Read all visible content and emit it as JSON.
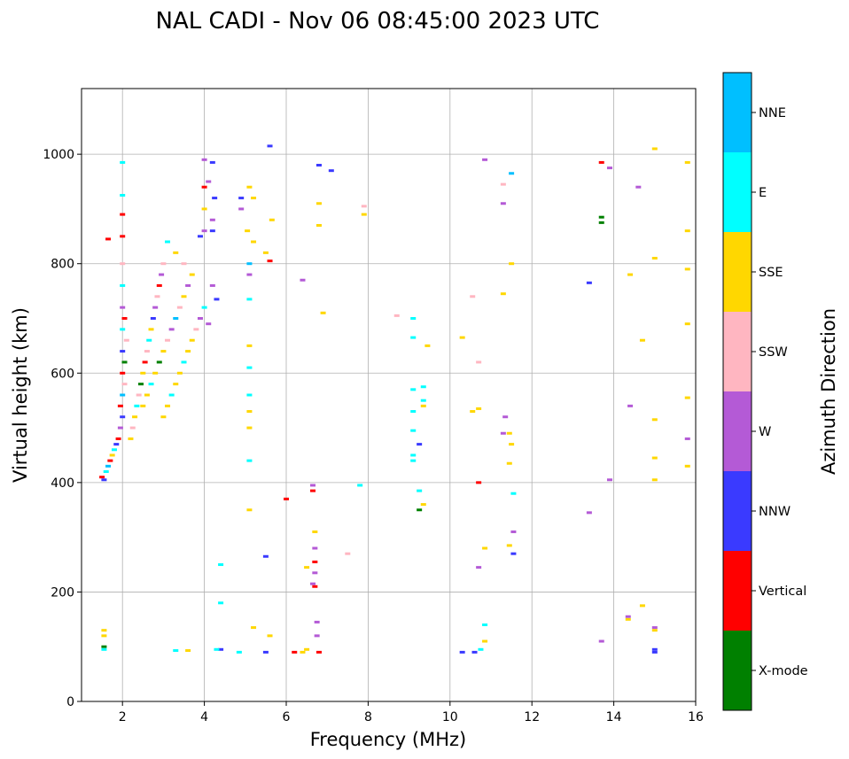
{
  "chart_data": {
    "type": "scatter",
    "title": "NAL CADI - Nov 06 08:45:00 2023 UTC",
    "xlabel": "Frequency (MHz)",
    "ylabel": "Virtual height (km)",
    "xlim": [
      1,
      16
    ],
    "ylim": [
      0,
      1120
    ],
    "xticks": [
      2,
      4,
      6,
      8,
      10,
      12,
      14,
      16
    ],
    "yticks": [
      0,
      200,
      400,
      600,
      800,
      1000
    ],
    "grid": true,
    "colorbar": {
      "label": "Azimuth Direction",
      "categories": [
        {
          "name": "X-mode",
          "color": "#008000"
        },
        {
          "name": "Vertical",
          "color": "#ff0000"
        },
        {
          "name": "NNW",
          "color": "#3a3aff"
        },
        {
          "name": "W",
          "color": "#b45ad6"
        },
        {
          "name": "SSW",
          "color": "#ffb6c1"
        },
        {
          "name": "SSE",
          "color": "#ffd700"
        },
        {
          "name": "E",
          "color": "#00ffff"
        },
        {
          "name": "NNE",
          "color": "#00bfff"
        }
      ]
    },
    "series": [
      {
        "name": "echoes",
        "points": [
          [
            1.55,
            130,
            "SSE"
          ],
          [
            1.55,
            120,
            "SSE"
          ],
          [
            1.55,
            100,
            "X-mode"
          ],
          [
            1.55,
            95,
            "E"
          ],
          [
            1.5,
            410,
            "Vertical"
          ],
          [
            1.55,
            405,
            "NNW"
          ],
          [
            1.6,
            420,
            "E"
          ],
          [
            1.65,
            430,
            "NNE"
          ],
          [
            1.7,
            440,
            "Vertical"
          ],
          [
            1.75,
            450,
            "SSE"
          ],
          [
            1.8,
            460,
            "E"
          ],
          [
            1.85,
            470,
            "NNW"
          ],
          [
            1.9,
            480,
            "Vertical"
          ],
          [
            1.95,
            500,
            "W"
          ],
          [
            2.0,
            520,
            "NNW"
          ],
          [
            1.95,
            540,
            "Vertical"
          ],
          [
            2.0,
            560,
            "NNE"
          ],
          [
            2.05,
            580,
            "SSW"
          ],
          [
            2.0,
            600,
            "Vertical"
          ],
          [
            2.05,
            620,
            "X-mode"
          ],
          [
            2.0,
            640,
            "NNW"
          ],
          [
            2.1,
            660,
            "SSW"
          ],
          [
            2.0,
            680,
            "E"
          ],
          [
            2.05,
            700,
            "Vertical"
          ],
          [
            2.0,
            720,
            "W"
          ],
          [
            2.0,
            760,
            "E"
          ],
          [
            2.0,
            800,
            "SSW"
          ],
          [
            2.0,
            850,
            "Vertical"
          ],
          [
            2.0,
            890,
            "Vertical"
          ],
          [
            2.0,
            925,
            "E"
          ],
          [
            2.0,
            985,
            "E"
          ],
          [
            1.65,
            845,
            "Vertical"
          ],
          [
            2.2,
            480,
            "SSE"
          ],
          [
            2.25,
            500,
            "SSW"
          ],
          [
            2.3,
            520,
            "SSE"
          ],
          [
            2.35,
            540,
            "E"
          ],
          [
            2.4,
            560,
            "SSW"
          ],
          [
            2.45,
            580,
            "X-mode"
          ],
          [
            2.5,
            600,
            "SSE"
          ],
          [
            2.55,
            620,
            "Vertical"
          ],
          [
            2.6,
            640,
            "SSW"
          ],
          [
            2.65,
            660,
            "E"
          ],
          [
            2.7,
            680,
            "SSE"
          ],
          [
            2.75,
            700,
            "NNW"
          ],
          [
            2.8,
            720,
            "W"
          ],
          [
            2.85,
            740,
            "SSW"
          ],
          [
            2.9,
            760,
            "Vertical"
          ],
          [
            2.95,
            780,
            "W"
          ],
          [
            3.0,
            800,
            "SSW"
          ],
          [
            2.5,
            540,
            "SSE"
          ],
          [
            2.6,
            560,
            "SSE"
          ],
          [
            2.7,
            580,
            "E"
          ],
          [
            2.8,
            600,
            "SSE"
          ],
          [
            2.9,
            620,
            "X-mode"
          ],
          [
            3.0,
            640,
            "SSE"
          ],
          [
            3.1,
            660,
            "SSW"
          ],
          [
            3.2,
            680,
            "W"
          ],
          [
            3.3,
            700,
            "NNE"
          ],
          [
            3.4,
            720,
            "SSW"
          ],
          [
            3.5,
            740,
            "SSE"
          ],
          [
            3.6,
            760,
            "W"
          ],
          [
            3.7,
            780,
            "SSE"
          ],
          [
            3.0,
            520,
            "SSE"
          ],
          [
            3.1,
            540,
            "SSE"
          ],
          [
            3.2,
            560,
            "E"
          ],
          [
            3.3,
            580,
            "SSE"
          ],
          [
            3.4,
            600,
            "SSE"
          ],
          [
            3.5,
            620,
            "E"
          ],
          [
            3.6,
            640,
            "SSE"
          ],
          [
            3.7,
            660,
            "SSE"
          ],
          [
            3.8,
            680,
            "SSW"
          ],
          [
            3.9,
            700,
            "W"
          ],
          [
            4.0,
            720,
            "E"
          ],
          [
            4.1,
            690,
            "W"
          ],
          [
            3.1,
            840,
            "E"
          ],
          [
            3.3,
            820,
            "SSE"
          ],
          [
            3.5,
            800,
            "SSW"
          ],
          [
            3.9,
            850,
            "NNW"
          ],
          [
            4.0,
            860,
            "W"
          ],
          [
            4.0,
            900,
            "SSE"
          ],
          [
            4.0,
            940,
            "Vertical"
          ],
          [
            4.1,
            950,
            "W"
          ],
          [
            4.0,
            990,
            "W"
          ],
          [
            4.2,
            880,
            "W"
          ],
          [
            4.25,
            920,
            "NNW"
          ],
          [
            4.2,
            860,
            "NNW"
          ],
          [
            4.2,
            985,
            "NNW"
          ],
          [
            4.3,
            735,
            "NNW"
          ],
          [
            4.2,
            760,
            "W"
          ],
          [
            4.4,
            250,
            "E"
          ],
          [
            4.4,
            180,
            "E"
          ],
          [
            4.4,
            95,
            "NNW"
          ],
          [
            4.9,
            920,
            "NNW"
          ],
          [
            4.9,
            900,
            "W"
          ],
          [
            5.1,
            940,
            "SSE"
          ],
          [
            5.2,
            920,
            "SSE"
          ],
          [
            5.05,
            860,
            "SSE"
          ],
          [
            5.2,
            840,
            "SSE"
          ],
          [
            5.1,
            800,
            "NNE"
          ],
          [
            5.1,
            780,
            "W"
          ],
          [
            5.1,
            735,
            "E"
          ],
          [
            5.1,
            650,
            "SSE"
          ],
          [
            5.1,
            610,
            "E"
          ],
          [
            5.1,
            560,
            "E"
          ],
          [
            5.1,
            530,
            "SSE"
          ],
          [
            5.1,
            500,
            "SSE"
          ],
          [
            5.1,
            440,
            "E"
          ],
          [
            5.1,
            350,
            "SSE"
          ],
          [
            5.2,
            135,
            "SSE"
          ],
          [
            4.3,
            95,
            "E"
          ],
          [
            4.85,
            90,
            "E"
          ],
          [
            3.3,
            93,
            "E"
          ],
          [
            3.6,
            93,
            "SSE"
          ],
          [
            5.5,
            820,
            "SSE"
          ],
          [
            5.6,
            805,
            "Vertical"
          ],
          [
            5.65,
            880,
            "SSE"
          ],
          [
            5.6,
            1015,
            "NNW"
          ],
          [
            5.5,
            265,
            "NNW"
          ],
          [
            5.6,
            120,
            "SSE"
          ],
          [
            5.5,
            90,
            "NNW"
          ],
          [
            6.0,
            370,
            "Vertical"
          ],
          [
            6.2,
            90,
            "Vertical"
          ],
          [
            6.4,
            90,
            "SSE"
          ],
          [
            6.5,
            95,
            "SSE"
          ],
          [
            6.5,
            245,
            "SSE"
          ],
          [
            6.65,
            385,
            "Vertical"
          ],
          [
            6.65,
            395,
            "W"
          ],
          [
            6.7,
            310,
            "SSE"
          ],
          [
            6.7,
            280,
            "W"
          ],
          [
            6.7,
            255,
            "Vertical"
          ],
          [
            6.7,
            235,
            "W"
          ],
          [
            6.65,
            215,
            "W"
          ],
          [
            6.7,
            210,
            "Vertical"
          ],
          [
            6.8,
            90,
            "Vertical"
          ],
          [
            6.75,
            145,
            "W"
          ],
          [
            6.75,
            120,
            "W"
          ],
          [
            6.4,
            770,
            "W"
          ],
          [
            6.8,
            870,
            "SSE"
          ],
          [
            6.8,
            910,
            "SSE"
          ],
          [
            6.8,
            980,
            "NNW"
          ],
          [
            6.9,
            710,
            "SSE"
          ],
          [
            7.1,
            970,
            "NNW"
          ],
          [
            7.8,
            395,
            "E"
          ],
          [
            7.5,
            270,
            "SSW"
          ],
          [
            7.9,
            890,
            "SSE"
          ],
          [
            7.9,
            905,
            "SSW"
          ],
          [
            8.7,
            705,
            "SSW"
          ],
          [
            9.1,
            700,
            "E"
          ],
          [
            9.1,
            665,
            "E"
          ],
          [
            9.1,
            570,
            "E"
          ],
          [
            9.1,
            530,
            "E"
          ],
          [
            9.1,
            495,
            "E"
          ],
          [
            9.1,
            450,
            "E"
          ],
          [
            9.1,
            440,
            "E"
          ],
          [
            9.25,
            470,
            "NNW"
          ],
          [
            9.25,
            385,
            "E"
          ],
          [
            9.25,
            350,
            "X-mode"
          ],
          [
            9.35,
            360,
            "SSE"
          ],
          [
            9.35,
            575,
            "E"
          ],
          [
            9.35,
            550,
            "E"
          ],
          [
            9.35,
            540,
            "SSE"
          ],
          [
            9.45,
            650,
            "SSE"
          ],
          [
            10.3,
            665,
            "SSE"
          ],
          [
            10.55,
            740,
            "SSW"
          ],
          [
            10.55,
            530,
            "SSE"
          ],
          [
            10.7,
            535,
            "SSE"
          ],
          [
            10.7,
            620,
            "SSW"
          ],
          [
            10.7,
            400,
            "Vertical"
          ],
          [
            10.7,
            245,
            "W"
          ],
          [
            10.3,
            90,
            "NNW"
          ],
          [
            10.6,
            90,
            "NNW"
          ],
          [
            10.75,
            95,
            "E"
          ],
          [
            10.85,
            110,
            "SSE"
          ],
          [
            10.85,
            140,
            "E"
          ],
          [
            10.85,
            280,
            "SSE"
          ],
          [
            10.85,
            990,
            "W"
          ],
          [
            11.3,
            945,
            "SSW"
          ],
          [
            11.3,
            910,
            "W"
          ],
          [
            11.3,
            745,
            "SSE"
          ],
          [
            11.35,
            520,
            "W"
          ],
          [
            11.3,
            490,
            "W"
          ],
          [
            11.45,
            490,
            "SSE"
          ],
          [
            11.5,
            470,
            "SSE"
          ],
          [
            11.45,
            435,
            "SSE"
          ],
          [
            11.5,
            965,
            "NNE"
          ],
          [
            11.5,
            800,
            "SSE"
          ],
          [
            11.55,
            380,
            "E"
          ],
          [
            11.55,
            310,
            "W"
          ],
          [
            11.55,
            270,
            "NNW"
          ],
          [
            11.45,
            285,
            "SSE"
          ],
          [
            13.4,
            765,
            "NNW"
          ],
          [
            13.4,
            345,
            "W"
          ],
          [
            13.7,
            985,
            "Vertical"
          ],
          [
            13.7,
            885,
            "X-mode"
          ],
          [
            13.7,
            875,
            "X-mode"
          ],
          [
            13.7,
            110,
            "W"
          ],
          [
            13.9,
            975,
            "W"
          ],
          [
            13.9,
            405,
            "W"
          ],
          [
            14.35,
            150,
            "SSE"
          ],
          [
            14.35,
            155,
            "W"
          ],
          [
            14.4,
            780,
            "SSE"
          ],
          [
            14.4,
            540,
            "W"
          ],
          [
            14.6,
            940,
            "W"
          ],
          [
            14.7,
            660,
            "SSE"
          ],
          [
            14.7,
            175,
            "SSE"
          ],
          [
            15.0,
            1010,
            "SSE"
          ],
          [
            15.0,
            810,
            "SSE"
          ],
          [
            15.0,
            515,
            "SSE"
          ],
          [
            15.0,
            445,
            "SSE"
          ],
          [
            15.0,
            405,
            "SSE"
          ],
          [
            15.0,
            130,
            "SSE"
          ],
          [
            15.0,
            135,
            "W"
          ],
          [
            15.0,
            90,
            "NNW"
          ],
          [
            15.0,
            95,
            "NNW"
          ],
          [
            15.8,
            985,
            "SSE"
          ],
          [
            15.8,
            860,
            "SSE"
          ],
          [
            15.8,
            790,
            "SSE"
          ],
          [
            15.8,
            690,
            "SSE"
          ],
          [
            15.8,
            555,
            "SSE"
          ],
          [
            15.8,
            480,
            "W"
          ],
          [
            15.8,
            430,
            "SSE"
          ]
        ]
      }
    ]
  }
}
